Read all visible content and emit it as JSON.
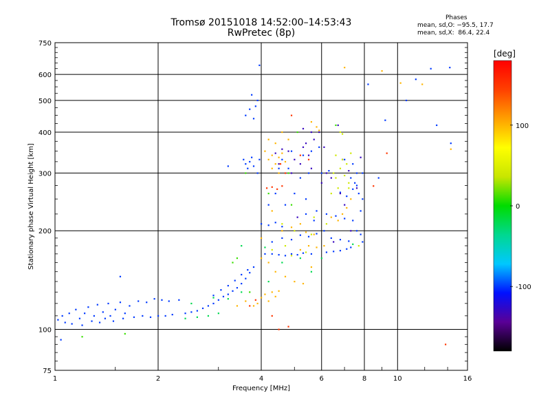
{
  "header": {
    "title_line1": "Tromsø 20151018 14:52:00–14:53:43",
    "title_line2": "RwPretec (8p)"
  },
  "phase_stats": {
    "title": "Phases",
    "line_o": "mean, sd,O: −95.5, 17.7",
    "line_x": "mean, sd,X:  86.4, 22.4"
  },
  "chart_data": {
    "type": "scatter",
    "title": "Tromsø 20151018 14:52:00–14:53:43",
    "subtitle": "RwPretec (8p)",
    "xlabel": "Frequency [MHz]",
    "ylabel": "Stationary phase Virtual Height [km]",
    "x_scale": "log",
    "y_scale": "log",
    "xlim": [
      1,
      16
    ],
    "ylim": [
      75,
      750
    ],
    "x_ticks": [
      1,
      2,
      4,
      6,
      8,
      10,
      16
    ],
    "x_tick_labels": [
      "1",
      "2",
      "4",
      "6",
      "8",
      "10",
      "16"
    ],
    "y_ticks": [
      75,
      100,
      200,
      300,
      400,
      500,
      600,
      750
    ],
    "y_tick_labels": [
      "75",
      "100",
      "200",
      "300",
      "400",
      "500",
      "600",
      "750"
    ],
    "grid": true,
    "colorbar": {
      "label": "[deg]",
      "range": [
        -180,
        180
      ],
      "ticks": [
        100,
        0,
        -100
      ],
      "tick_labels": [
        "100",
        "0",
        "-100"
      ],
      "colors": [
        "#000000",
        "#5a0096",
        "#0010ff",
        "#00c8ff",
        "#00d890",
        "#00dc00",
        "#c8e600",
        "#ffff00",
        "#ffa000",
        "#ff4000",
        "#ff0000"
      ]
    },
    "series": [
      {
        "phase": -100,
        "points": [
          [
            1.02,
            107
          ],
          [
            1.05,
            110
          ],
          [
            1.07,
            105
          ],
          [
            1.1,
            112
          ],
          [
            1.12,
            104
          ],
          [
            1.15,
            115
          ],
          [
            1.18,
            108
          ],
          [
            1.2,
            103
          ],
          [
            1.22,
            112
          ],
          [
            1.25,
            117
          ],
          [
            1.28,
            106
          ],
          [
            1.3,
            110
          ],
          [
            1.33,
            119
          ],
          [
            1.35,
            105
          ],
          [
            1.38,
            113
          ],
          [
            1.4,
            108
          ],
          [
            1.43,
            120
          ],
          [
            1.45,
            110
          ],
          [
            1.48,
            106
          ],
          [
            1.5,
            115
          ],
          [
            1.55,
            121
          ],
          [
            1.58,
            108
          ],
          [
            1.6,
            112
          ],
          [
            1.65,
            118
          ],
          [
            1.7,
            109
          ],
          [
            1.75,
            122
          ],
          [
            1.8,
            110
          ],
          [
            1.85,
            121
          ],
          [
            1.9,
            109
          ],
          [
            1.95,
            124
          ],
          [
            2.0,
            110
          ],
          [
            2.05,
            123
          ],
          [
            2.1,
            110
          ],
          [
            2.15,
            122
          ],
          [
            2.2,
            111
          ],
          [
            2.3,
            123
          ],
          [
            2.4,
            112
          ],
          [
            2.5,
            113
          ],
          [
            2.6,
            114
          ],
          [
            2.7,
            116
          ],
          [
            2.8,
            118
          ],
          [
            2.9,
            120
          ],
          [
            3.0,
            123
          ],
          [
            3.1,
            126
          ],
          [
            3.2,
            128
          ],
          [
            3.3,
            131
          ],
          [
            3.4,
            134
          ],
          [
            3.5,
            138
          ],
          [
            3.6,
            143
          ],
          [
            3.7,
            149
          ],
          [
            3.8,
            155
          ],
          [
            2.9,
            127
          ],
          [
            3.05,
            132
          ],
          [
            3.2,
            136
          ],
          [
            3.35,
            141
          ],
          [
            3.5,
            147
          ],
          [
            3.65,
            152
          ],
          [
            3.55,
            330
          ],
          [
            3.6,
            320
          ],
          [
            3.65,
            310
          ],
          [
            3.7,
            325
          ],
          [
            3.75,
            335
          ],
          [
            3.8,
            315
          ],
          [
            3.9,
            300
          ],
          [
            3.95,
            330
          ],
          [
            3.6,
            450
          ],
          [
            3.7,
            470
          ],
          [
            3.8,
            440
          ],
          [
            3.9,
            500
          ],
          [
            3.95,
            640
          ],
          [
            3.85,
            480
          ],
          [
            3.75,
            520
          ],
          [
            4.1,
            170
          ],
          [
            4.3,
            170
          ],
          [
            4.5,
            169
          ],
          [
            4.7,
            168
          ],
          [
            4.9,
            170
          ],
          [
            5.1,
            169
          ],
          [
            5.3,
            171
          ],
          [
            5.6,
            170
          ],
          [
            4.0,
            210
          ],
          [
            4.2,
            208
          ],
          [
            4.4,
            212
          ],
          [
            4.6,
            206
          ],
          [
            4.3,
            185
          ],
          [
            4.6,
            190
          ],
          [
            4.9,
            188
          ],
          [
            5.2,
            194
          ],
          [
            5.5,
            192
          ],
          [
            5.8,
            196
          ],
          [
            6.2,
            172
          ],
          [
            6.5,
            173
          ],
          [
            6.8,
            174
          ],
          [
            7.1,
            176
          ],
          [
            7.3,
            178
          ],
          [
            6.4,
            190
          ],
          [
            6.8,
            188
          ],
          [
            7.2,
            186
          ],
          [
            6.2,
            225
          ],
          [
            6.6,
            222
          ],
          [
            7.0,
            218
          ],
          [
            7.4,
            215
          ],
          [
            6.8,
            262
          ],
          [
            7.1,
            255
          ],
          [
            7.4,
            268
          ],
          [
            7.6,
            275
          ],
          [
            7.7,
            260
          ],
          [
            7.5,
            280
          ],
          [
            7.3,
            290
          ],
          [
            6.0,
            300
          ],
          [
            6.3,
            305
          ],
          [
            5.5,
            300
          ],
          [
            5.2,
            290
          ],
          [
            4.8,
            310
          ],
          [
            4.6,
            330
          ],
          [
            5.0,
            260
          ],
          [
            5.4,
            250
          ],
          [
            5.8,
            230
          ],
          [
            4.7,
            240
          ],
          [
            7.0,
            330
          ],
          [
            7.4,
            320
          ],
          [
            7.6,
            300
          ],
          [
            5.6,
            350
          ],
          [
            5.9,
            360
          ],
          [
            5.3,
            340
          ],
          [
            4.9,
            350
          ],
          [
            4.5,
            310
          ],
          [
            6.1,
            200
          ],
          [
            5.7,
            215
          ],
          [
            5.4,
            225
          ],
          [
            4.2,
            240
          ],
          [
            4.4,
            260
          ],
          [
            7.6,
            200
          ],
          [
            7.8,
            195
          ],
          [
            7.9,
            185
          ],
          [
            7.9,
            300
          ],
          [
            7.9,
            250
          ],
          [
            7.8,
            230
          ],
          [
            8.8,
            290
          ],
          [
            9.2,
            435
          ],
          [
            11.3,
            580
          ],
          [
            12.5,
            625
          ],
          [
            13.0,
            420
          ],
          [
            14.2,
            630
          ],
          [
            14.3,
            370
          ],
          [
            8.2,
            560
          ],
          [
            10.6,
            500
          ],
          [
            1.55,
            145
          ],
          [
            1.04,
            93
          ],
          [
            3.2,
            315
          ]
        ]
      },
      {
        "phase": -130,
        "points": [
          [
            4.8,
            350
          ],
          [
            5.0,
            330
          ],
          [
            5.3,
            360
          ],
          [
            5.5,
            340
          ],
          [
            5.7,
            380
          ],
          [
            5.9,
            400
          ],
          [
            6.1,
            360
          ],
          [
            4.6,
            355
          ],
          [
            4.4,
            345
          ],
          [
            5.2,
            320
          ],
          [
            5.6,
            310
          ],
          [
            5.4,
            370
          ],
          [
            6.0,
            280
          ],
          [
            6.2,
            300
          ],
          [
            6.4,
            290
          ],
          [
            5.3,
            410
          ],
          [
            5.6,
            400
          ],
          [
            6.8,
            260
          ],
          [
            7.0,
            240
          ],
          [
            7.3,
            200
          ],
          [
            6.7,
            420
          ],
          [
            6.9,
            330
          ],
          [
            4.9,
            300
          ],
          [
            5.1,
            220
          ],
          [
            4.5,
            320
          ],
          [
            6.5,
            185
          ],
          [
            7.6,
            270
          ],
          [
            7.2,
            305
          ],
          [
            7.8,
            335
          ]
        ]
      },
      {
        "phase": 100,
        "points": [
          [
            4.2,
            330
          ],
          [
            4.3,
            340
          ],
          [
            4.4,
            320
          ],
          [
            4.5,
            335
          ],
          [
            4.6,
            345
          ],
          [
            4.7,
            325
          ],
          [
            4.3,
            310
          ],
          [
            4.5,
            300
          ],
          [
            4.1,
            350
          ],
          [
            4.2,
            380
          ],
          [
            4.4,
            370
          ],
          [
            4.6,
            400
          ],
          [
            4.8,
            380
          ],
          [
            4.0,
            125
          ],
          [
            4.1,
            128
          ],
          [
            4.2,
            122
          ],
          [
            4.3,
            130
          ],
          [
            4.4,
            126
          ],
          [
            3.9,
            120
          ],
          [
            3.8,
            118
          ],
          [
            4.5,
            131
          ],
          [
            5.2,
            175
          ],
          [
            5.5,
            180
          ],
          [
            5.8,
            178
          ],
          [
            6.1,
            180
          ],
          [
            4.6,
            200
          ],
          [
            4.9,
            205
          ],
          [
            5.2,
            210
          ],
          [
            5.4,
            198
          ],
          [
            5.7,
            195
          ],
          [
            6.4,
            220
          ],
          [
            6.7,
            215
          ],
          [
            6.9,
            225
          ],
          [
            7.1,
            235
          ],
          [
            7.3,
            250
          ],
          [
            4.4,
            150
          ],
          [
            4.7,
            145
          ],
          [
            5.0,
            140
          ],
          [
            5.3,
            138
          ],
          [
            5.6,
            155
          ],
          [
            4.0,
            165
          ],
          [
            4.2,
            160
          ],
          [
            3.6,
            122
          ],
          [
            3.4,
            118
          ],
          [
            4.0,
            190
          ],
          [
            4.3,
            230
          ],
          [
            5.8,
            415
          ],
          [
            5.6,
            430
          ],
          [
            5.9,
            405
          ],
          [
            7.0,
            630
          ],
          [
            9.0,
            615
          ],
          [
            10.2,
            565
          ],
          [
            11.8,
            560
          ],
          [
            14.3,
            355
          ]
        ]
      },
      {
        "phase": 40,
        "points": [
          [
            6.5,
            300
          ],
          [
            6.6,
            290
          ],
          [
            6.8,
            310
          ],
          [
            7.0,
            295
          ],
          [
            7.2,
            280
          ],
          [
            6.7,
            270
          ],
          [
            6.9,
            330
          ],
          [
            7.1,
            320
          ],
          [
            6.6,
            340
          ],
          [
            7.3,
            345
          ],
          [
            6.8,
            400
          ],
          [
            6.9,
            395
          ],
          [
            5.6,
            195
          ],
          [
            5.0,
            200
          ],
          [
            4.7,
            180
          ],
          [
            4.3,
            175
          ],
          [
            4.9,
            168
          ],
          [
            5.4,
            172
          ],
          [
            5.7,
            220
          ],
          [
            6.4,
            260
          ],
          [
            7.2,
            270
          ],
          [
            4.6,
            210
          ],
          [
            6.2,
            210
          ],
          [
            7.7,
            180
          ]
        ]
      },
      {
        "phase": 150,
        "points": [
          [
            4.15,
            270
          ],
          [
            4.3,
            272
          ],
          [
            4.45,
            268
          ],
          [
            4.6,
            274
          ],
          [
            4.55,
            320
          ],
          [
            4.7,
            300
          ],
          [
            5.2,
            340
          ],
          [
            3.7,
            118
          ],
          [
            3.85,
            123
          ],
          [
            4.3,
            110
          ],
          [
            4.5,
            100
          ],
          [
            4.8,
            102
          ],
          [
            5.5,
            330
          ],
          [
            9.3,
            345
          ],
          [
            8.5,
            274
          ],
          [
            13.8,
            90
          ],
          [
            4.9,
            450
          ]
        ]
      },
      {
        "phase": -20,
        "points": [
          [
            2.4,
            108
          ],
          [
            2.6,
            109
          ],
          [
            2.8,
            110
          ],
          [
            3.0,
            112
          ],
          [
            2.5,
            120
          ],
          [
            2.9,
            125
          ],
          [
            3.2,
            124
          ],
          [
            3.5,
            130
          ],
          [
            4.1,
            178
          ],
          [
            4.6,
            160
          ],
          [
            5.2,
            165
          ],
          [
            4.2,
            140
          ],
          [
            5.6,
            150
          ],
          [
            6.0,
            165
          ],
          [
            7.4,
            182
          ],
          [
            3.5,
            180
          ]
        ]
      },
      {
        "phase": 10,
        "points": [
          [
            1.6,
            97
          ],
          [
            3.3,
            160
          ],
          [
            3.7,
            130
          ],
          [
            6.6,
            420
          ],
          [
            4.9,
            240
          ],
          [
            5.1,
            400
          ],
          [
            3.6,
            300
          ],
          [
            4.2,
            260
          ],
          [
            4.8,
            300
          ],
          [
            1.2,
            95
          ],
          [
            3.4,
            165
          ]
        ]
      }
    ]
  }
}
